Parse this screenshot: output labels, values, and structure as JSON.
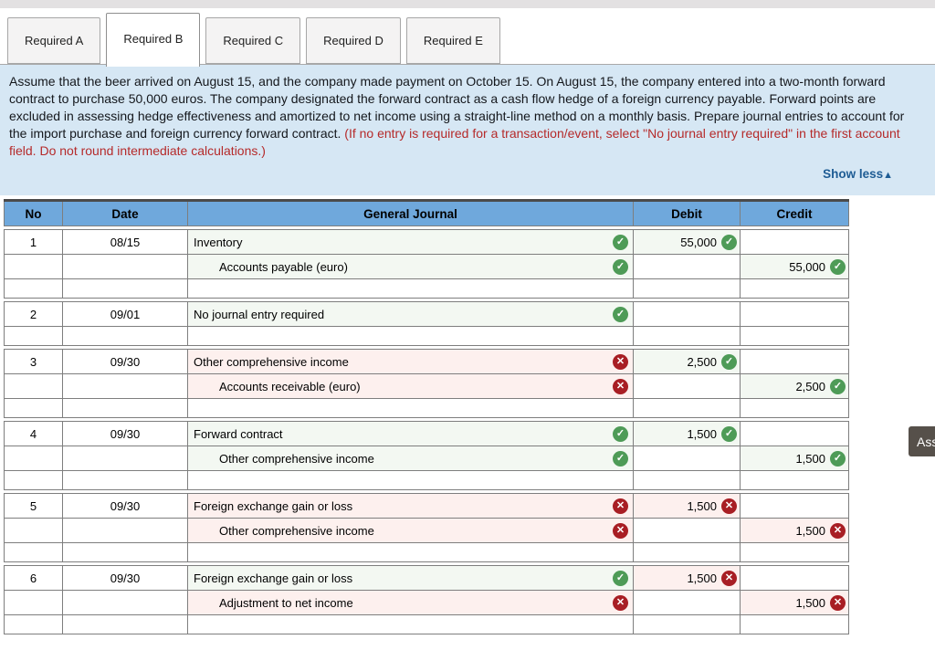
{
  "tabs": [
    {
      "label": "Required A",
      "active": false
    },
    {
      "label": "Required B",
      "active": true
    },
    {
      "label": "Required C",
      "active": false
    },
    {
      "label": "Required D",
      "active": false
    },
    {
      "label": "Required E",
      "active": false
    }
  ],
  "instructions": {
    "main": "Assume that the beer arrived on August 15, and the company made payment on October 15. On August 15, the company entered into a two-month forward contract to purchase 50,000 euros. The company designated the forward contract as a cash flow hedge of a foreign currency payable. Forward points are excluded in assessing hedge effectiveness and amortized to net income using a straight-line method on a monthly basis. Prepare journal entries to account for the import purchase and foreign currency forward contract.",
    "note": "(If no entry is required for a transaction/event, select \"No journal entry required\" in the first account field. Do not round intermediate calculations.)",
    "show_less": "Show less",
    "show_less_arrow": "▲"
  },
  "table": {
    "headers": [
      "No",
      "Date",
      "General Journal",
      "Debit",
      "Credit"
    ],
    "entries": [
      {
        "no": "1",
        "date": "08/15",
        "lines": [
          {
            "account": "Inventory",
            "indent": false,
            "account_status": "correct",
            "debit": "55,000",
            "debit_status": "correct",
            "credit": "",
            "credit_status": ""
          },
          {
            "account": "Accounts payable (euro)",
            "indent": true,
            "account_status": "correct",
            "debit": "",
            "debit_status": "",
            "credit": "55,000",
            "credit_status": "correct"
          }
        ]
      },
      {
        "no": "2",
        "date": "09/01",
        "lines": [
          {
            "account": "No journal entry required",
            "indent": false,
            "account_status": "correct",
            "debit": "",
            "debit_status": "",
            "credit": "",
            "credit_status": ""
          }
        ]
      },
      {
        "no": "3",
        "date": "09/30",
        "lines": [
          {
            "account": "Other comprehensive income",
            "indent": false,
            "account_status": "incorrect",
            "debit": "2,500",
            "debit_status": "correct",
            "credit": "",
            "credit_status": ""
          },
          {
            "account": "Accounts receivable (euro)",
            "indent": true,
            "account_status": "incorrect",
            "debit": "",
            "debit_status": "",
            "credit": "2,500",
            "credit_status": "correct"
          }
        ]
      },
      {
        "no": "4",
        "date": "09/30",
        "lines": [
          {
            "account": "Forward contract",
            "indent": false,
            "account_status": "correct",
            "debit": "1,500",
            "debit_status": "correct",
            "credit": "",
            "credit_status": ""
          },
          {
            "account": "Other comprehensive income",
            "indent": true,
            "account_status": "correct",
            "debit": "",
            "debit_status": "",
            "credit": "1,500",
            "credit_status": "correct"
          }
        ]
      },
      {
        "no": "5",
        "date": "09/30",
        "lines": [
          {
            "account": "Foreign exchange gain or loss",
            "indent": false,
            "account_status": "incorrect",
            "debit": "1,500",
            "debit_status": "incorrect",
            "credit": "",
            "credit_status": ""
          },
          {
            "account": "Other comprehensive income",
            "indent": true,
            "account_status": "incorrect",
            "debit": "",
            "debit_status": "",
            "credit": "1,500",
            "credit_status": "incorrect"
          }
        ]
      },
      {
        "no": "6",
        "date": "09/30",
        "lines": [
          {
            "account": "Foreign exchange gain or loss",
            "indent": false,
            "account_status": "correct",
            "debit": "1,500",
            "debit_status": "incorrect",
            "credit": "",
            "credit_status": ""
          },
          {
            "account": "Adjustment to net income",
            "indent": true,
            "account_status": "incorrect",
            "debit": "",
            "debit_status": "",
            "credit": "1,500",
            "credit_status": "incorrect"
          }
        ]
      }
    ]
  },
  "icons": {
    "correct_glyph": "✓",
    "incorrect_glyph": "✕"
  },
  "side_button": {
    "label": "Ass"
  },
  "colors": {
    "header_blue": "#6fa8dc",
    "panel_blue": "#d6e7f4",
    "note_red": "#b52a2a",
    "link_blue": "#1e5c94",
    "correct_green": "#4e9b57",
    "incorrect_red": "#a81e24",
    "side_btn_bg": "#56504a"
  }
}
